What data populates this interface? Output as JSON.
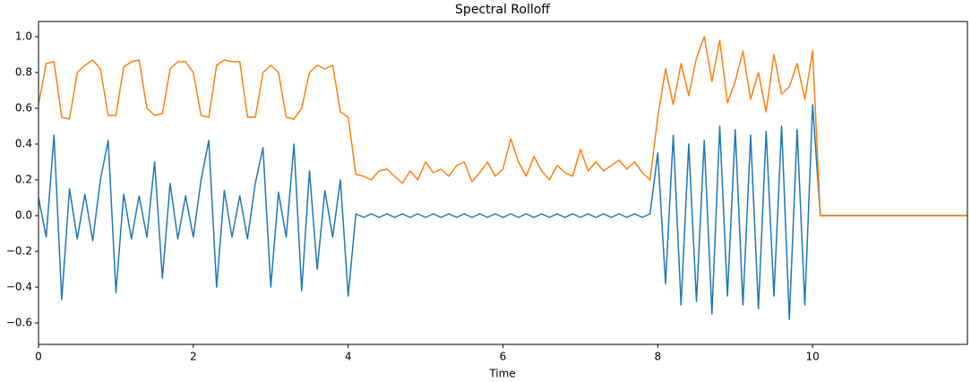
{
  "chart_data": {
    "type": "line",
    "title": "Spectral Rolloff",
    "x_label": "Time",
    "x": [
      0,
      0.1,
      0.2,
      0.3,
      0.4,
      0.5,
      0.6,
      0.7,
      0.8,
      0.9,
      1,
      1.1,
      1.2,
      1.3,
      1.4,
      1.5,
      1.6,
      1.7,
      1.8,
      1.9,
      2,
      2.1,
      2.2,
      2.3,
      2.4,
      2.5,
      2.6,
      2.7,
      2.8,
      2.9,
      3,
      3.1,
      3.2,
      3.3,
      3.4,
      3.5,
      3.6,
      3.7,
      3.8,
      3.9,
      4,
      4.1,
      4.2,
      4.3,
      4.4,
      4.5,
      4.6,
      4.7,
      4.8,
      4.9,
      5,
      5.1,
      5.2,
      5.3,
      5.4,
      5.5,
      5.6,
      5.7,
      5.8,
      5.9,
      6,
      6.1,
      6.2,
      6.3,
      6.4,
      6.5,
      6.6,
      6.7,
      6.8,
      6.9,
      7,
      7.1,
      7.2,
      7.3,
      7.4,
      7.5,
      7.6,
      7.7,
      7.8,
      7.9,
      8,
      8.1,
      8.2,
      8.3,
      8.4,
      8.5,
      8.6,
      8.7,
      8.8,
      8.9,
      9,
      9.1,
      9.2,
      9.3,
      9.4,
      9.5,
      9.6,
      9.7,
      9.8,
      9.9,
      10,
      10.1,
      10.2,
      10.3,
      10.4,
      10.5,
      10.6,
      10.7,
      10.8,
      10.9,
      11,
      11.1,
      11.2,
      11.3,
      11.4,
      11.5,
      11.6,
      11.7,
      11.8,
      11.9,
      12
    ],
    "series": [
      {
        "color": "#1f77b4",
        "values": [
          0.1,
          -0.12,
          0.45,
          -0.47,
          0.15,
          -0.13,
          0.12,
          -0.14,
          0.2,
          0.42,
          -0.43,
          0.12,
          -0.13,
          0.11,
          -0.12,
          0.3,
          -0.35,
          0.18,
          -0.13,
          0.11,
          -0.12,
          0.2,
          0.42,
          -0.4,
          0.14,
          -0.12,
          0.11,
          -0.13,
          0.18,
          0.38,
          -0.4,
          0.13,
          -0.12,
          0.4,
          -0.42,
          0.25,
          -0.3,
          0.14,
          -0.12,
          0.2,
          -0.45,
          0.01,
          -0.01,
          0.01,
          -0.01,
          0.01,
          -0.01,
          0.01,
          -0.01,
          0.01,
          -0.01,
          0.01,
          -0.01,
          0.01,
          -0.01,
          0.01,
          -0.01,
          0.01,
          -0.01,
          0.01,
          -0.01,
          0.01,
          -0.01,
          0.01,
          -0.01,
          0.01,
          -0.01,
          0.01,
          -0.01,
          0.01,
          -0.01,
          0.01,
          -0.01,
          0.01,
          -0.01,
          0.01,
          -0.01,
          0.01,
          -0.01,
          0.01,
          0.35,
          -0.38,
          0.45,
          -0.5,
          0.4,
          -0.48,
          0.42,
          -0.55,
          0.5,
          -0.45,
          0.48,
          -0.5,
          0.45,
          -0.52,
          0.47,
          -0.45,
          0.5,
          -0.58,
          0.48,
          -0.5,
          0.62,
          0,
          0,
          0,
          0,
          0,
          0,
          0,
          0,
          0,
          0,
          0,
          0,
          0,
          0,
          0,
          0,
          0,
          0,
          0,
          0
        ]
      },
      {
        "color": "#ff7f0e",
        "values": [
          0.62,
          0.85,
          0.86,
          0.55,
          0.54,
          0.8,
          0.84,
          0.87,
          0.82,
          0.56,
          0.56,
          0.83,
          0.86,
          0.87,
          0.6,
          0.56,
          0.57,
          0.82,
          0.86,
          0.86,
          0.8,
          0.56,
          0.55,
          0.84,
          0.87,
          0.86,
          0.86,
          0.55,
          0.55,
          0.8,
          0.84,
          0.8,
          0.55,
          0.54,
          0.6,
          0.8,
          0.84,
          0.82,
          0.84,
          0.58,
          0.55,
          0.23,
          0.22,
          0.2,
          0.25,
          0.26,
          0.22,
          0.18,
          0.25,
          0.2,
          0.3,
          0.24,
          0.26,
          0.22,
          0.28,
          0.3,
          0.19,
          0.24,
          0.3,
          0.22,
          0.26,
          0.43,
          0.3,
          0.22,
          0.33,
          0.25,
          0.2,
          0.28,
          0.24,
          0.22,
          0.37,
          0.25,
          0.3,
          0.25,
          0.28,
          0.31,
          0.26,
          0.3,
          0.24,
          0.2,
          0.55,
          0.82,
          0.62,
          0.85,
          0.67,
          0.88,
          1.0,
          0.75,
          0.98,
          0.63,
          0.75,
          0.92,
          0.65,
          0.8,
          0.58,
          0.9,
          0.68,
          0.72,
          0.85,
          0.65,
          0.92,
          0,
          0,
          0,
          0,
          0,
          0,
          0,
          0,
          0,
          0,
          0,
          0,
          0,
          0,
          0,
          0,
          0,
          0,
          0,
          0
        ]
      }
    ],
    "xlim": [
      0,
      12
    ],
    "ylim": [
      -0.72,
      1.085
    ],
    "xticks": [
      0,
      2,
      4,
      6,
      8,
      10
    ],
    "yticks": [
      {
        "value": -0.6,
        "label": "−0.6"
      },
      {
        "value": -0.4,
        "label": "−0.4"
      },
      {
        "value": -0.2,
        "label": "−0.2"
      },
      {
        "value": 0,
        "label": "0.0"
      },
      0.2,
      0.4,
      0.6,
      0.8,
      {
        "value": 1,
        "label": "1.0"
      }
    ]
  }
}
